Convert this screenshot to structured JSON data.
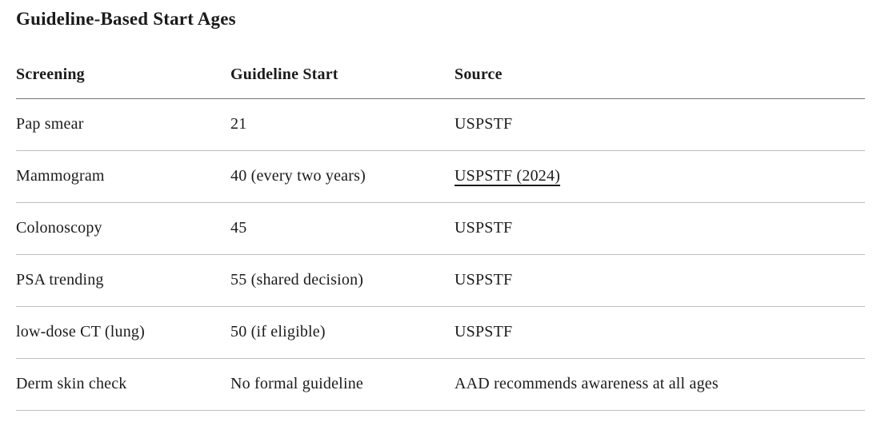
{
  "page": {
    "title": "Guideline-Based Start Ages"
  },
  "table": {
    "columns": [
      "Screening",
      "Guideline Start",
      "Source"
    ],
    "rows": [
      {
        "screening": "Pap smear",
        "start": "21",
        "source": "USPSTF"
      },
      {
        "screening": "Mammogram",
        "start": "40 (every two years)",
        "source": "USPSTF (2024)",
        "source_is_link": true
      },
      {
        "screening": "Colonoscopy",
        "start": "45",
        "source": "USPSTF"
      },
      {
        "screening": "PSA trending",
        "start": "55 (shared decision)",
        "source": "USPSTF"
      },
      {
        "screening": "low-dose CT (lung)",
        "start": "50 (if eligible)",
        "source": "USPSTF"
      },
      {
        "screening": "Derm skin check",
        "start": "No formal guideline",
        "source": "AAD recommends awareness at all ages"
      }
    ]
  },
  "colors": {
    "background": "#ffffff",
    "text": "#1c1b1a",
    "header_rule": "#757575",
    "row_rule": "#bfbfbf"
  }
}
